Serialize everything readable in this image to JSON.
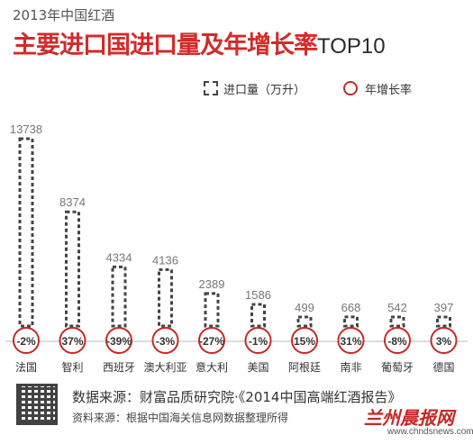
{
  "header": {
    "supertitle": "2013年中国红酒",
    "title": "主要进口国进口量及年增长率",
    "title_suffix": "TOP10"
  },
  "legend": {
    "volume_label": "进口量（万升）",
    "growth_label": "年增长率"
  },
  "colors": {
    "title": "#d42a2a",
    "bar_outline": "#444444",
    "circle": "#c62828"
  },
  "chart_data": {
    "type": "bar",
    "categories": [
      "法国",
      "智利",
      "西班牙",
      "澳大利亚",
      "意大利",
      "美国",
      "阿根廷",
      "南非",
      "葡萄牙",
      "德国"
    ],
    "series": [
      {
        "name": "进口量（万升）",
        "values": [
          13738,
          8374,
          4334,
          4136,
          2389,
          1586,
          499,
          668,
          542,
          397
        ]
      },
      {
        "name": "年增长率",
        "values": [
          "-2%",
          "37%",
          "-39%",
          "-3%",
          "-27%",
          "-1%",
          "15%",
          "31%",
          "-8%",
          "3%"
        ]
      }
    ],
    "value_labels": [
      "13738",
      "8374",
      "4334",
      "4136",
      "2389",
      "1586",
      "499",
      "668",
      "542",
      "397"
    ]
  },
  "footer": {
    "source1": "数据来源：财富品质研究院·《2014中国高端红酒报告》",
    "source2": "资料来源：根据中国海关信息网数据整理所得"
  },
  "logo": {
    "text": "兰州晨报网",
    "url_text": "www.chndsnews.com"
  }
}
